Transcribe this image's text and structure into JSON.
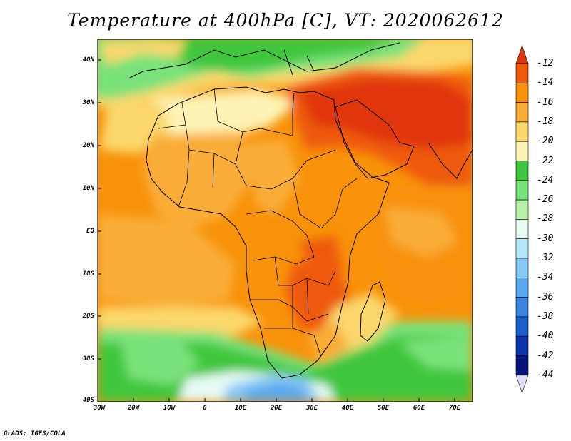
{
  "title": "Temperature at 400hPa [C], VT: 2020062612",
  "footer": "GrADS: IGES/COLA",
  "map": {
    "lat_labels": [
      "40N",
      "30N",
      "20N",
      "10N",
      "EQ",
      "10S",
      "20S",
      "30S",
      "40S"
    ],
    "lon_labels": [
      "30W",
      "20W",
      "10W",
      "0",
      "10E",
      "20E",
      "30E",
      "40E",
      "50E",
      "60E",
      "70E"
    ]
  },
  "colorbar": {
    "levels": [
      "-12",
      "-14",
      "-16",
      "-18",
      "-20",
      "-22",
      "-24",
      "-26",
      "-28",
      "-30",
      "-32",
      "-34",
      "-36",
      "-38",
      "-40",
      "-42",
      "-44"
    ],
    "colors": [
      "#e0340c",
      "#ee5a0c",
      "#f8920a",
      "#f9ad38",
      "#fbd76c",
      "#fdf3b4",
      "#3fc63d",
      "#7ae27a",
      "#b7f0a8",
      "#e6fbf4",
      "#b4e6fb",
      "#87c8f5",
      "#5aa9ec",
      "#3a86e2",
      "#1c5fcb",
      "#0c34a8",
      "#061678"
    ],
    "min_cap_color": "#e0dffb"
  }
}
